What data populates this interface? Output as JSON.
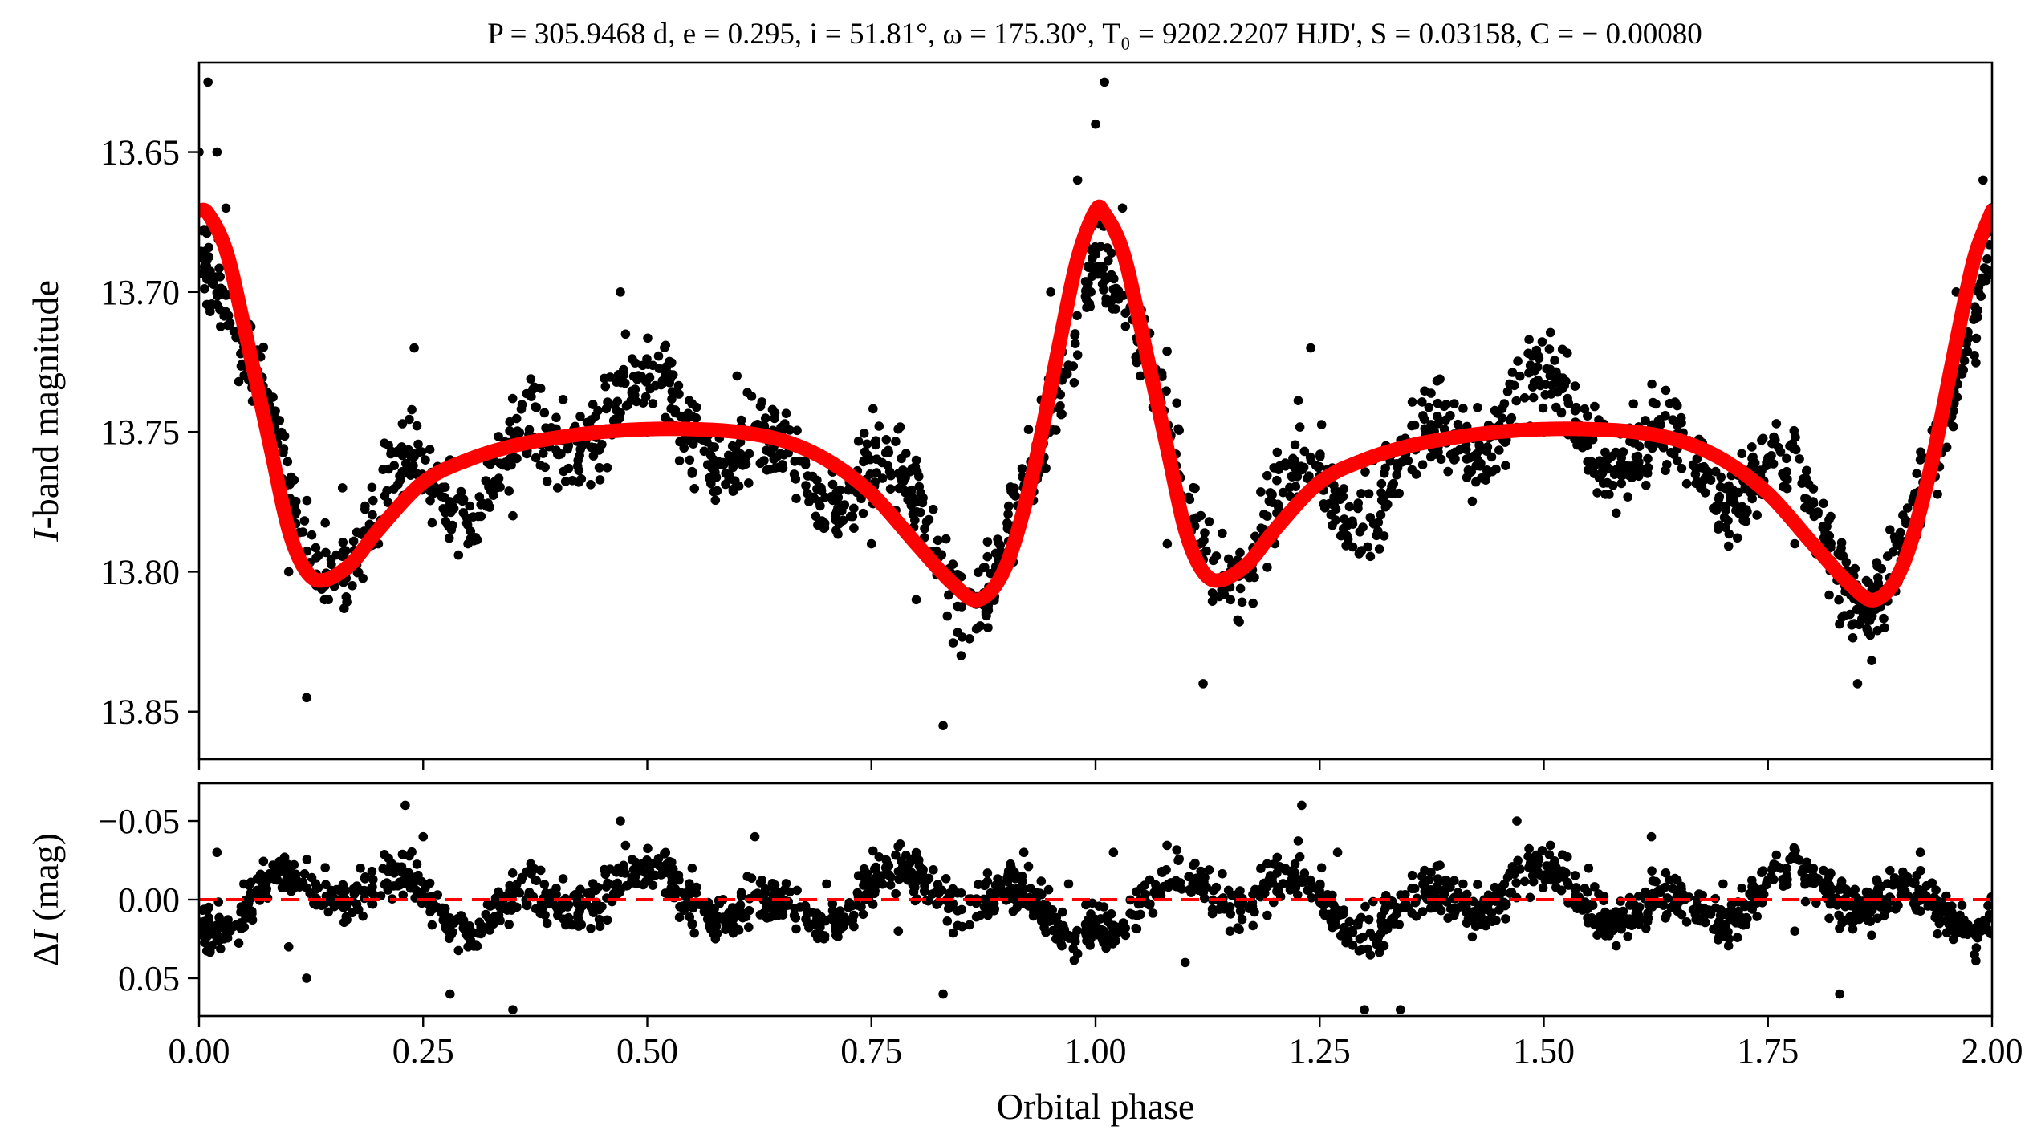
{
  "figure": {
    "title": "P = 305.9468 d, e = 0.295, i = 51.81°, ω = 175.30°, T₀ = 9202.2207 HJD', S = 0.03158, C = − 0.00080",
    "colors": {
      "points": "#000000",
      "model": "#ff0000",
      "axes": "#000000",
      "background": "#ffffff"
    }
  },
  "chart_data": [
    {
      "type": "scatter",
      "panel": "light-curve",
      "title": "P = 305.9468 d, e = 0.295, i = 51.81°, ω = 175.30°, T₀ = 9202.2207 HJD', S = 0.03158, C = − 0.00080",
      "xlabel": "",
      "ylabel_italic": "I",
      "ylabel_rest": "-band magnitude",
      "xlim": [
        0,
        2
      ],
      "ylim": [
        13.867,
        13.618
      ],
      "y_inverted": true,
      "xticks": [
        0,
        0.25,
        0.5,
        0.75,
        1.0,
        1.25,
        1.5,
        1.75,
        2.0
      ],
      "yticks": [
        13.65,
        13.7,
        13.75,
        13.8,
        13.85
      ],
      "ytick_labels": [
        "13.65",
        "13.70",
        "13.75",
        "13.80",
        "13.85"
      ],
      "grid": false,
      "series": [
        {
          "kind": "points",
          "color": "#000000",
          "description_of_scatter": "observed magnitudes, noisy around model",
          "points_sampled": {
            "x": [
              0.0,
              0.01,
              0.02,
              0.03,
              0.05,
              0.08,
              0.1,
              0.12,
              0.14,
              0.16,
              0.2,
              0.24,
              0.28,
              0.3,
              0.35,
              0.4,
              0.47,
              0.5,
              0.55,
              0.6,
              0.65,
              0.7,
              0.75,
              0.8,
              0.83,
              0.85,
              0.88,
              0.92,
              0.95,
              0.98,
              1.0,
              1.01,
              1.03,
              1.05,
              1.08,
              1.12,
              1.15,
              1.2,
              1.24,
              1.3,
              1.4,
              1.5,
              1.6,
              1.7,
              1.78,
              1.85,
              1.88,
              1.92,
              1.96,
              1.99
            ],
            "y": [
              13.65,
              13.625,
              13.65,
              13.67,
              13.71,
              13.76,
              13.8,
              13.845,
              13.81,
              13.77,
              13.79,
              13.72,
              13.76,
              13.79,
              13.78,
              13.77,
              13.7,
              13.75,
              13.74,
              13.73,
              13.75,
              13.76,
              13.79,
              13.81,
              13.855,
              13.83,
              13.82,
              13.77,
              13.7,
              13.66,
              13.64,
              13.625,
              13.67,
              13.73,
              13.79,
              13.84,
              13.8,
              13.79,
              13.72,
              13.76,
              13.76,
              13.75,
              13.74,
              13.76,
              13.79,
              13.84,
              13.82,
              13.76,
              13.7,
              13.66
            ]
          }
        },
        {
          "kind": "line",
          "color": "#ff0000",
          "description": "orbital model curve",
          "x": [
            0.0,
            0.01,
            0.03,
            0.05,
            0.08,
            0.1,
            0.12,
            0.14,
            0.17,
            0.2,
            0.25,
            0.3,
            0.35,
            0.4,
            0.45,
            0.5,
            0.55,
            0.6,
            0.65,
            0.7,
            0.75,
            0.8,
            0.84,
            0.87,
            0.9,
            0.93,
            0.96,
            0.98,
            1.0,
            1.01,
            1.03,
            1.05,
            1.08,
            1.1,
            1.12,
            1.14,
            1.17,
            1.2,
            1.25,
            1.3,
            1.35,
            1.4,
            1.45,
            1.5,
            1.55,
            1.6,
            1.65,
            1.7,
            1.75,
            1.8,
            1.84,
            1.87,
            1.9,
            1.93,
            1.96,
            1.98,
            2.0
          ],
          "y": [
            13.671,
            13.672,
            13.685,
            13.712,
            13.756,
            13.785,
            13.8,
            13.803,
            13.797,
            13.785,
            13.768,
            13.76,
            13.755,
            13.752,
            13.75,
            13.749,
            13.749,
            13.75,
            13.753,
            13.76,
            13.772,
            13.79,
            13.804,
            13.81,
            13.798,
            13.765,
            13.718,
            13.688,
            13.671,
            13.672,
            13.685,
            13.712,
            13.756,
            13.785,
            13.8,
            13.803,
            13.797,
            13.785,
            13.768,
            13.76,
            13.755,
            13.752,
            13.75,
            13.749,
            13.749,
            13.75,
            13.753,
            13.76,
            13.772,
            13.79,
            13.804,
            13.81,
            13.798,
            13.765,
            13.718,
            13.688,
            13.671
          ]
        }
      ]
    },
    {
      "type": "scatter",
      "panel": "residuals",
      "xlabel": "Orbital phase",
      "ylabel_prefix": "Δ",
      "ylabel_italic": "I",
      "ylabel_rest": " (mag)",
      "xlim": [
        0,
        2
      ],
      "ylim": [
        0.074,
        -0.074
      ],
      "y_inverted": true,
      "xticks": [
        0,
        0.25,
        0.5,
        0.75,
        1.0,
        1.25,
        1.5,
        1.75,
        2.0
      ],
      "xtick_labels": [
        "0.00",
        "0.25",
        "0.50",
        "0.75",
        "1.00",
        "1.25",
        "1.50",
        "1.75",
        "2.00"
      ],
      "yticks": [
        -0.05,
        0.0,
        0.05
      ],
      "ytick_labels": [
        "−0.05",
        "0.00",
        "0.05"
      ],
      "grid": false,
      "series": [
        {
          "kind": "points",
          "color": "#000000",
          "description_of_scatter": "residuals scattered about zero within about ±0.065 mag",
          "points_sampled": {
            "x": [
              0.02,
              0.05,
              0.1,
              0.12,
              0.18,
              0.23,
              0.25,
              0.28,
              0.3,
              0.35,
              0.4,
              0.47,
              0.55,
              0.62,
              0.7,
              0.78,
              0.83,
              0.88,
              0.92,
              0.97,
              1.02,
              1.05,
              1.1,
              1.15,
              1.23,
              1.27,
              1.3,
              1.34,
              1.4,
              1.47,
              1.55,
              1.62,
              1.7,
              1.78,
              1.83,
              1.88,
              1.92,
              1.97
            ],
            "y": [
              -0.03,
              -0.01,
              0.03,
              0.05,
              -0.02,
              -0.06,
              -0.04,
              0.06,
              0.03,
              0.07,
              0.01,
              -0.05,
              -0.02,
              -0.04,
              -0.01,
              0.02,
              0.06,
              0.01,
              -0.03,
              -0.01,
              -0.03,
              0.0,
              0.04,
              0.02,
              -0.06,
              -0.03,
              0.07,
              0.07,
              0.01,
              -0.05,
              -0.02,
              -0.04,
              -0.01,
              0.02,
              0.06,
              0.01,
              -0.03,
              0.02
            ]
          }
        },
        {
          "kind": "line",
          "style": "dashed",
          "color": "#ff0000",
          "description": "zero residual line",
          "x": [
            0,
            2
          ],
          "y": [
            0,
            0
          ]
        }
      ]
    }
  ]
}
